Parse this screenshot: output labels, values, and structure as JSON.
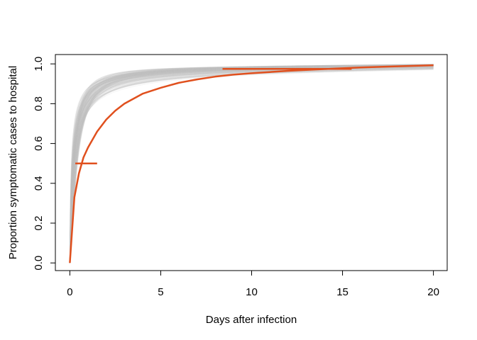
{
  "chart_data": {
    "type": "line",
    "title": "",
    "xlabel": "Days after infection",
    "ylabel": "Proportion symptomatic cases to hospital",
    "xlim": [
      0,
      20
    ],
    "ylim": [
      0,
      1
    ],
    "x_ticks": [
      0,
      5,
      10,
      15,
      20
    ],
    "y_ticks": [
      0.0,
      0.2,
      0.4,
      0.6,
      0.8,
      1.0
    ],
    "x_tick_labels": [
      "0",
      "5",
      "10",
      "15",
      "20"
    ],
    "y_tick_labels": [
      "0.0",
      "0.2",
      "0.4",
      "0.6",
      "0.8",
      "1.0"
    ],
    "grid": false,
    "series": [
      {
        "color": "#E0501E",
        "x": [
          0,
          0.25,
          0.5,
          0.75,
          1,
          1.5,
          2,
          2.5,
          3,
          4,
          5,
          6,
          7,
          8,
          9,
          10,
          12,
          14,
          16,
          18,
          20
        ],
        "y": [
          0.0,
          0.33,
          0.45,
          0.53,
          0.58,
          0.66,
          0.72,
          0.765,
          0.8,
          0.85,
          0.88,
          0.905,
          0.922,
          0.936,
          0.946,
          0.953,
          0.965,
          0.974,
          0.982,
          0.988,
          0.993
        ]
      }
    ],
    "uncertainty_band": {
      "color": "#BEBEBE",
      "count": 200
    },
    "reference_segments": [
      {
        "y": 0.5,
        "x_from": 0.3,
        "x_to": 1.5,
        "color": "#E0501E"
      },
      {
        "y": 0.975,
        "x_from": 8.4,
        "x_to": 15.5,
        "color": "#E0501E"
      }
    ]
  }
}
